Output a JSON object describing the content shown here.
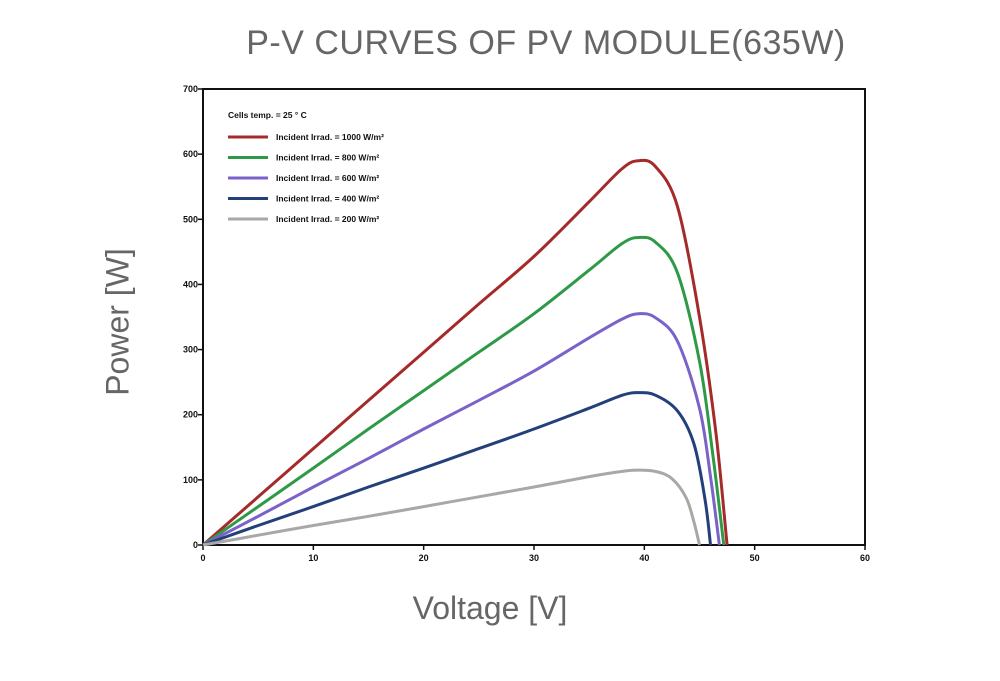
{
  "chart_data": {
    "type": "line",
    "title": "P-V CURVES OF PV MODULE(635W)",
    "xlabel": "Voltage [V]",
    "ylabel": "Power [W]",
    "xlim": [
      0,
      60
    ],
    "ylim": [
      0,
      700
    ],
    "xticks": [
      0,
      10,
      20,
      30,
      40,
      50,
      60
    ],
    "yticks": [
      0,
      100,
      200,
      300,
      400,
      500,
      600,
      700
    ],
    "grid": false,
    "legend_title": "Cells temp. = 25 ° C",
    "legend_position": "top-left",
    "series": [
      {
        "name": "Incident Irrad. = 1000 W/m²",
        "color": "#a52a2a",
        "points": [
          [
            0,
            0
          ],
          [
            5,
            74
          ],
          [
            10,
            148
          ],
          [
            15,
            222
          ],
          [
            20,
            296
          ],
          [
            25,
            370
          ],
          [
            30,
            443
          ],
          [
            35,
            527
          ],
          [
            38,
            578
          ],
          [
            39.5,
            590
          ],
          [
            41,
            581
          ],
          [
            43,
            520
          ],
          [
            45,
            350
          ],
          [
            46.5,
            170
          ],
          [
            47.5,
            0
          ]
        ]
      },
      {
        "name": "Incident Irrad. = 800 W/m²",
        "color": "#2e9a48",
        "points": [
          [
            0,
            0
          ],
          [
            5,
            59
          ],
          [
            10,
            118
          ],
          [
            15,
            178
          ],
          [
            20,
            237
          ],
          [
            25,
            296
          ],
          [
            30,
            355
          ],
          [
            35,
            422
          ],
          [
            38,
            463
          ],
          [
            39.5,
            472
          ],
          [
            41,
            465
          ],
          [
            43,
            418
          ],
          [
            45,
            282
          ],
          [
            46.2,
            140
          ],
          [
            47.2,
            0
          ]
        ]
      },
      {
        "name": "Incident Irrad. = 600 W/m²",
        "color": "#7a62c8",
        "points": [
          [
            0,
            0
          ],
          [
            5,
            44
          ],
          [
            10,
            89
          ],
          [
            15,
            133
          ],
          [
            20,
            178
          ],
          [
            25,
            222
          ],
          [
            30,
            267
          ],
          [
            35,
            318
          ],
          [
            38,
            347
          ],
          [
            39.5,
            355
          ],
          [
            41,
            349
          ],
          [
            43,
            313
          ],
          [
            45,
            210
          ],
          [
            46,
            105
          ],
          [
            46.8,
            0
          ]
        ]
      },
      {
        "name": "Incident Irrad. = 400 W/m²",
        "color": "#24407a",
        "points": [
          [
            0,
            0
          ],
          [
            5,
            30
          ],
          [
            10,
            59
          ],
          [
            15,
            89
          ],
          [
            20,
            118
          ],
          [
            25,
            148
          ],
          [
            30,
            178
          ],
          [
            35,
            210
          ],
          [
            38,
            230
          ],
          [
            39.5,
            234
          ],
          [
            41,
            230
          ],
          [
            43,
            206
          ],
          [
            44.5,
            155
          ],
          [
            45.5,
            70
          ],
          [
            46,
            0
          ]
        ]
      },
      {
        "name": "Incident Irrad. = 200 W/m²",
        "color": "#a8a8a8",
        "points": [
          [
            0,
            0
          ],
          [
            5,
            15
          ],
          [
            10,
            30
          ],
          [
            15,
            44
          ],
          [
            20,
            59
          ],
          [
            25,
            74
          ],
          [
            30,
            89
          ],
          [
            35,
            105
          ],
          [
            38,
            113
          ],
          [
            39.5,
            115
          ],
          [
            41,
            113
          ],
          [
            42.5,
            102
          ],
          [
            43.8,
            72
          ],
          [
            44.5,
            35
          ],
          [
            45,
            0
          ]
        ]
      }
    ]
  }
}
